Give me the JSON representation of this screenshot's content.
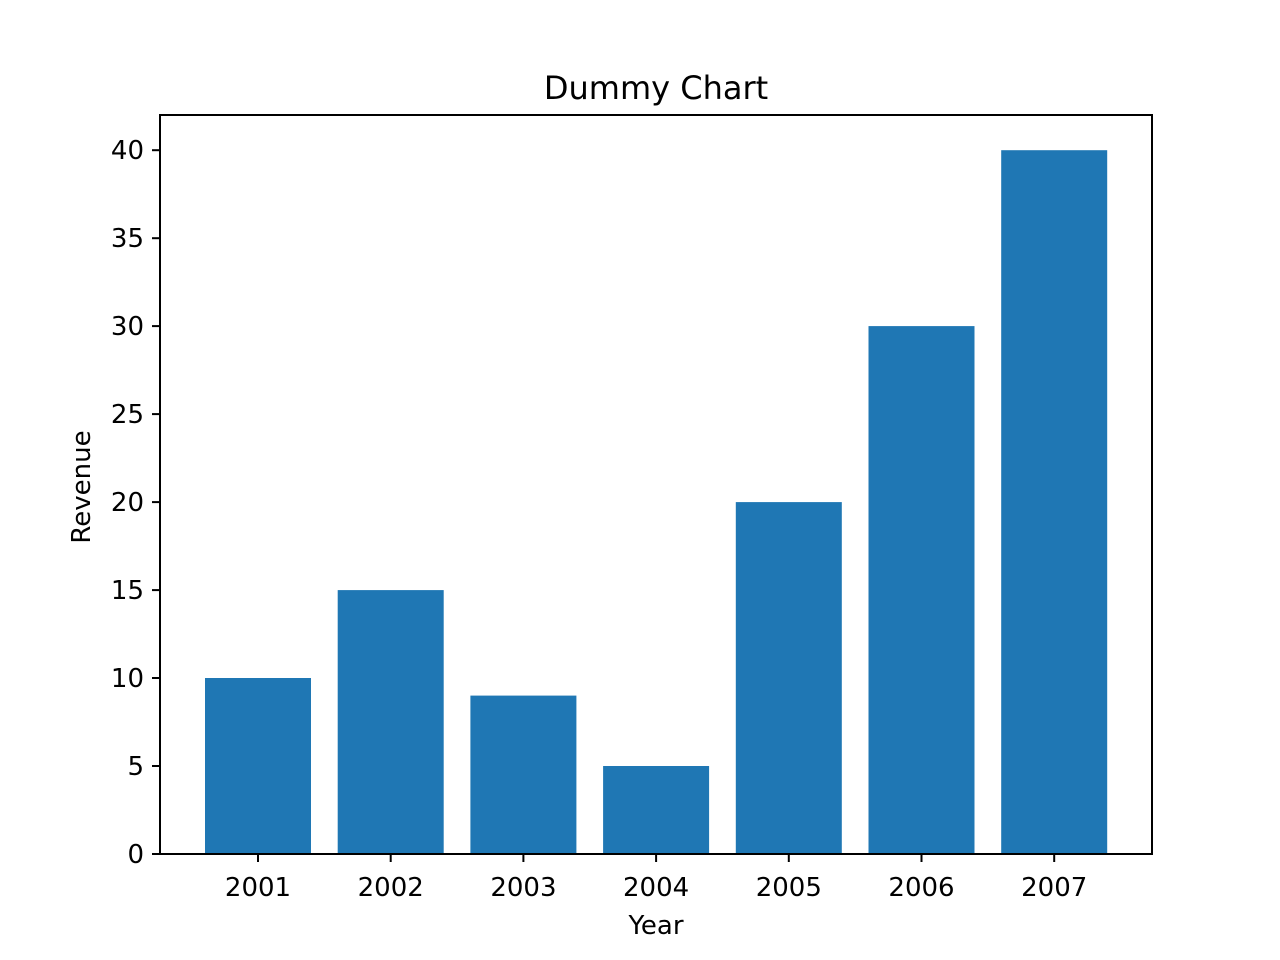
{
  "chart_data": {
    "type": "bar",
    "title": "Dummy Chart",
    "xlabel": "Year",
    "ylabel": "Revenue",
    "categories": [
      "2001",
      "2002",
      "2003",
      "2004",
      "2005",
      "2006",
      "2007"
    ],
    "values": [
      10,
      15,
      9,
      5,
      20,
      30,
      40
    ],
    "ylim": [
      0,
      42
    ],
    "yticks": [
      0,
      5,
      10,
      15,
      20,
      25,
      30,
      35,
      40
    ],
    "grid": false,
    "legend": "none",
    "bar_color": "#1f77b4"
  }
}
